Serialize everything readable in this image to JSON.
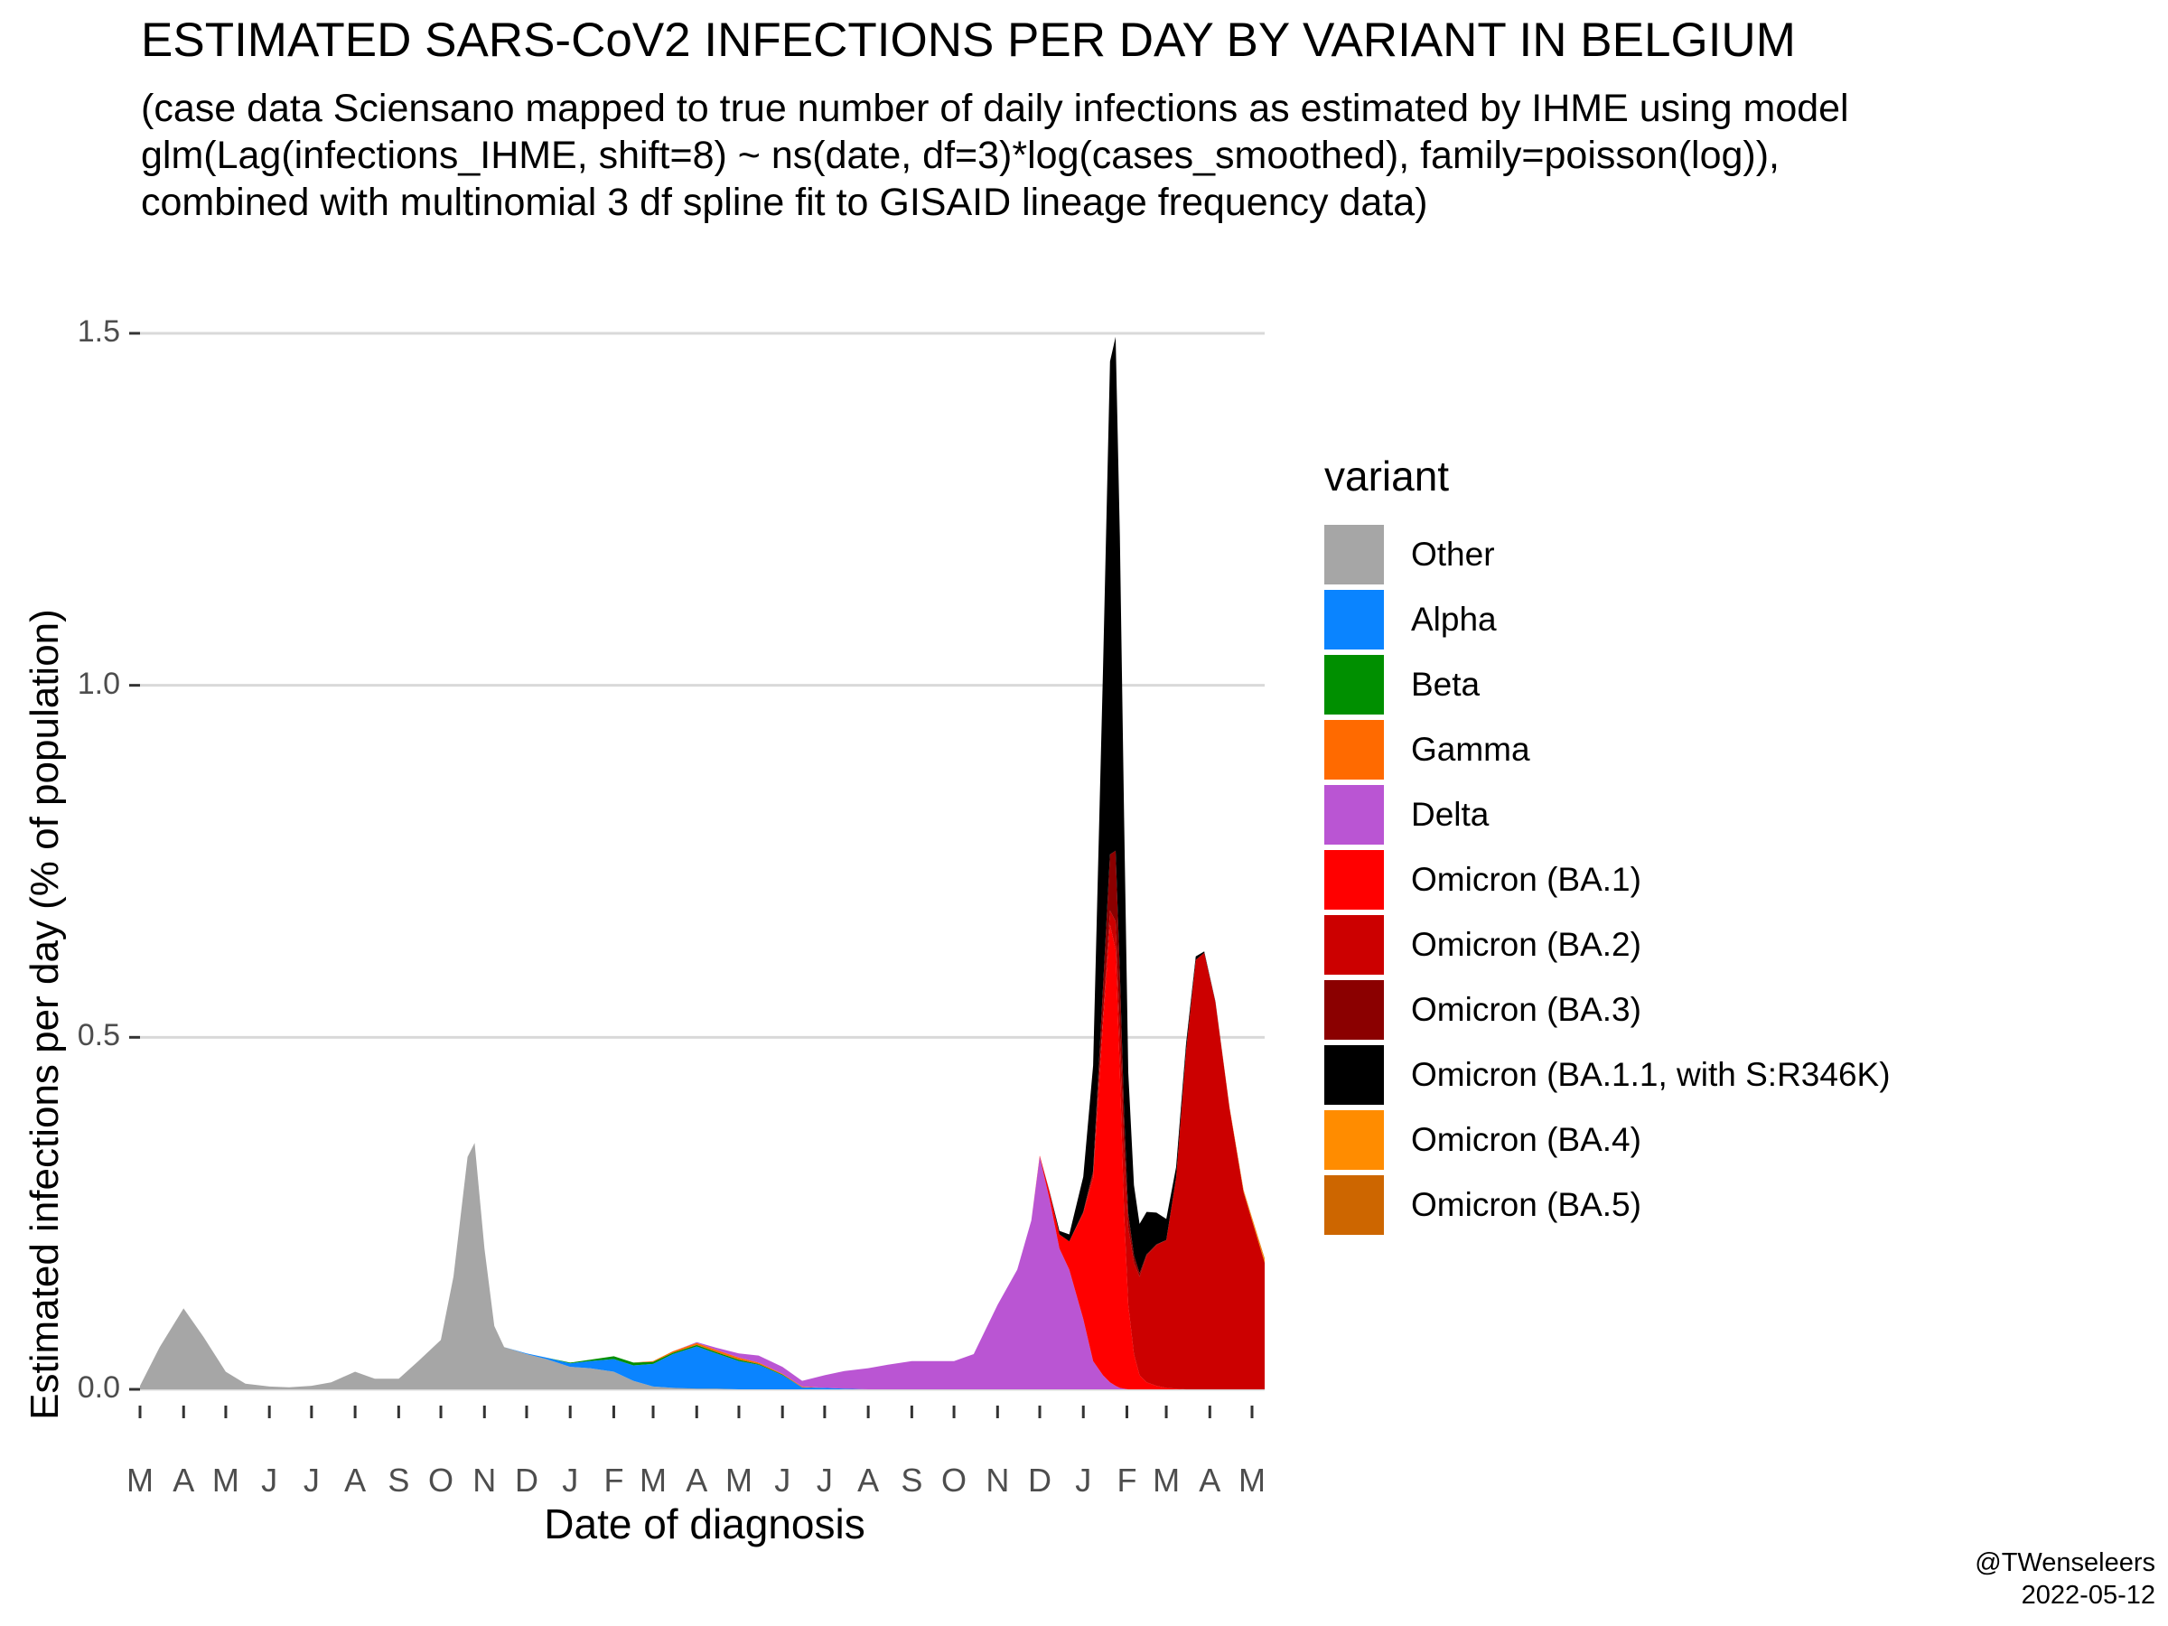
{
  "chart_data": {
    "type": "area",
    "stacked": true,
    "title": "ESTIMATED SARS-CoV2 INFECTIONS PER DAY BY VARIANT IN BELGIUM",
    "subtitle": [
      "(case data Sciensano mapped to true number of daily infections as estimated by IHME using model",
      "glm(Lag(infections_IHME, shift=8) ~ ns(date, df=3)*log(cases_smoothed), family=poisson(log)),",
      "combined with multinomial 3 df spline fit to GISAID lineage frequency data)"
    ],
    "xlabel": "Date of diagnosis",
    "ylabel": "Estimated infections per day (% of population)",
    "ylim": [
      0,
      1.55
    ],
    "xlim": [
      "2020-03-01",
      "2022-05-10"
    ],
    "y_ticks": [
      0.0,
      0.5,
      1.0,
      1.5
    ],
    "y_tick_labels": [
      "0.0",
      "0.5",
      "1.0",
      "1.5"
    ],
    "x_ticks": [
      "2020-03-01",
      "2020-04-01",
      "2020-05-01",
      "2020-06-01",
      "2020-07-01",
      "2020-08-01",
      "2020-09-01",
      "2020-10-01",
      "2020-11-01",
      "2020-12-01",
      "2021-01-01",
      "2021-02-01",
      "2021-03-01",
      "2021-04-01",
      "2021-05-01",
      "2021-06-01",
      "2021-07-01",
      "2021-08-01",
      "2021-09-01",
      "2021-10-01",
      "2021-11-01",
      "2021-12-01",
      "2022-01-01",
      "2022-02-01",
      "2022-03-01",
      "2022-04-01",
      "2022-05-01"
    ],
    "x_tick_labels": [
      "M",
      "A",
      "M",
      "J",
      "J",
      "A",
      "S",
      "O",
      "N",
      "D",
      "J",
      "F",
      "M",
      "A",
      "M",
      "J",
      "J",
      "A",
      "S",
      "O",
      "N",
      "D",
      "J",
      "F",
      "M",
      "A",
      "M"
    ],
    "grid": "horizontal major",
    "legend_title": "variant",
    "legend_position": "right",
    "x": [
      "2020-03-01",
      "2020-03-15",
      "2020-04-01",
      "2020-04-15",
      "2020-05-01",
      "2020-05-15",
      "2020-06-01",
      "2020-06-15",
      "2020-07-01",
      "2020-07-15",
      "2020-08-01",
      "2020-08-15",
      "2020-09-01",
      "2020-09-15",
      "2020-10-01",
      "2020-10-10",
      "2020-10-20",
      "2020-10-25",
      "2020-11-01",
      "2020-11-08",
      "2020-11-15",
      "2020-12-01",
      "2020-12-15",
      "2021-01-01",
      "2021-01-15",
      "2021-02-01",
      "2021-02-15",
      "2021-03-01",
      "2021-03-15",
      "2021-04-01",
      "2021-04-15",
      "2021-05-01",
      "2021-05-15",
      "2021-06-01",
      "2021-06-15",
      "2021-07-01",
      "2021-07-15",
      "2021-08-01",
      "2021-08-15",
      "2021-09-01",
      "2021-09-15",
      "2021-10-01",
      "2021-10-15",
      "2021-11-01",
      "2021-11-15",
      "2021-11-25",
      "2021-12-01",
      "2021-12-08",
      "2021-12-15",
      "2021-12-22",
      "2022-01-01",
      "2022-01-08",
      "2022-01-15",
      "2022-01-20",
      "2022-01-24",
      "2022-01-27",
      "2022-01-30",
      "2022-02-02",
      "2022-02-06",
      "2022-02-10",
      "2022-02-15",
      "2022-02-22",
      "2022-03-01",
      "2022-03-08",
      "2022-03-15",
      "2022-03-22",
      "2022-03-28",
      "2022-04-05",
      "2022-04-15",
      "2022-04-25",
      "2022-05-01",
      "2022-05-10"
    ],
    "series": [
      {
        "name": "Other",
        "color": "#A6A6A6",
        "values": [
          0.005,
          0.06,
          0.115,
          0.075,
          0.025,
          0.008,
          0.004,
          0.003,
          0.005,
          0.01,
          0.025,
          0.015,
          0.015,
          0.04,
          0.07,
          0.16,
          0.33,
          0.35,
          0.2,
          0.09,
          0.06,
          0.05,
          0.043,
          0.032,
          0.03,
          0.025,
          0.012,
          0.004,
          0.002,
          0.001,
          0.001,
          0,
          0,
          0,
          0,
          0,
          0,
          0,
          0,
          0,
          0,
          0,
          0,
          0,
          0,
          0,
          0,
          0,
          0,
          0,
          0,
          0,
          0,
          0,
          0,
          0,
          0,
          0,
          0,
          0,
          0,
          0,
          0,
          0,
          0,
          0,
          0,
          0,
          0,
          0,
          0,
          0
        ]
      },
      {
        "name": "Alpha",
        "color": "#0A84FF",
        "values": [
          0,
          0,
          0,
          0,
          0,
          0,
          0,
          0,
          0,
          0,
          0,
          0,
          0,
          0,
          0,
          0,
          0,
          0,
          0,
          0,
          0,
          0.001,
          0.002,
          0.005,
          0.01,
          0.018,
          0.022,
          0.032,
          0.048,
          0.06,
          0.05,
          0.04,
          0.035,
          0.02,
          0.003,
          0.002,
          0.001,
          0,
          0,
          0,
          0,
          0,
          0,
          0,
          0,
          0,
          0,
          0,
          0,
          0,
          0,
          0,
          0,
          0,
          0,
          0,
          0,
          0,
          0,
          0,
          0,
          0,
          0,
          0,
          0,
          0,
          0,
          0,
          0,
          0,
          0,
          0
        ]
      },
      {
        "name": "Beta",
        "color": "#008F00",
        "values": [
          0,
          0,
          0,
          0,
          0,
          0,
          0,
          0,
          0,
          0,
          0,
          0,
          0,
          0,
          0,
          0,
          0,
          0,
          0,
          0,
          0,
          0,
          0,
          0.001,
          0.002,
          0.004,
          0.004,
          0.003,
          0.002,
          0.002,
          0.002,
          0.002,
          0.001,
          0.001,
          0,
          0,
          0,
          0,
          0,
          0,
          0,
          0,
          0,
          0,
          0,
          0,
          0,
          0,
          0,
          0,
          0,
          0,
          0,
          0,
          0,
          0,
          0,
          0,
          0,
          0,
          0,
          0,
          0,
          0,
          0,
          0,
          0,
          0,
          0,
          0,
          0,
          0
        ]
      },
      {
        "name": "Gamma",
        "color": "#FF6A00",
        "values": [
          0,
          0,
          0,
          0,
          0,
          0,
          0,
          0,
          0,
          0,
          0,
          0,
          0,
          0,
          0,
          0,
          0,
          0,
          0,
          0,
          0,
          0,
          0,
          0,
          0,
          0,
          0,
          0.001,
          0.002,
          0.003,
          0.003,
          0.003,
          0.002,
          0.001,
          0.001,
          0,
          0,
          0,
          0,
          0,
          0,
          0,
          0,
          0,
          0,
          0,
          0,
          0,
          0,
          0,
          0,
          0,
          0,
          0,
          0,
          0,
          0,
          0,
          0,
          0,
          0,
          0,
          0,
          0,
          0,
          0,
          0,
          0,
          0,
          0,
          0,
          0
        ]
      },
      {
        "name": "Delta",
        "color": "#BA55D3",
        "values": [
          0,
          0,
          0,
          0,
          0,
          0,
          0,
          0,
          0,
          0,
          0,
          0,
          0,
          0,
          0,
          0,
          0,
          0,
          0,
          0,
          0,
          0,
          0,
          0,
          0,
          0,
          0,
          0,
          0,
          0.001,
          0.003,
          0.006,
          0.01,
          0.01,
          0.008,
          0.018,
          0.025,
          0.03,
          0.035,
          0.04,
          0.04,
          0.04,
          0.05,
          0.12,
          0.17,
          0.24,
          0.33,
          0.27,
          0.2,
          0.17,
          0.1,
          0.04,
          0.02,
          0.01,
          0.005,
          0.002,
          0.001,
          0,
          0,
          0,
          0,
          0,
          0,
          0,
          0,
          0,
          0,
          0,
          0,
          0,
          0,
          0
        ]
      },
      {
        "name": "Omicron (BA.1)",
        "color": "#FF0000",
        "values": [
          0,
          0,
          0,
          0,
          0,
          0,
          0,
          0,
          0,
          0,
          0,
          0,
          0,
          0,
          0,
          0,
          0,
          0,
          0,
          0,
          0,
          0,
          0,
          0,
          0,
          0,
          0,
          0,
          0,
          0,
          0,
          0,
          0,
          0,
          0,
          0,
          0,
          0,
          0,
          0,
          0,
          0,
          0,
          0,
          0,
          0,
          0.002,
          0.01,
          0.02,
          0.04,
          0.15,
          0.26,
          0.5,
          0.65,
          0.62,
          0.45,
          0.25,
          0.12,
          0.05,
          0.02,
          0.01,
          0.005,
          0.002,
          0.001,
          0,
          0,
          0,
          0,
          0,
          0,
          0,
          0
        ]
      },
      {
        "name": "Omicron (BA.2)",
        "color": "#CC0000",
        "values": [
          0,
          0,
          0,
          0,
          0,
          0,
          0,
          0,
          0,
          0,
          0,
          0,
          0,
          0,
          0,
          0,
          0,
          0,
          0,
          0,
          0,
          0,
          0,
          0,
          0,
          0,
          0,
          0,
          0,
          0,
          0,
          0,
          0,
          0,
          0,
          0,
          0,
          0,
          0,
          0,
          0,
          0,
          0,
          0,
          0,
          0,
          0,
          0,
          0,
          0,
          0.002,
          0.005,
          0.01,
          0.02,
          0.04,
          0.06,
          0.09,
          0.11,
          0.13,
          0.14,
          0.18,
          0.2,
          0.21,
          0.3,
          0.48,
          0.61,
          0.62,
          0.55,
          0.4,
          0.28,
          0.24,
          0.18
        ]
      },
      {
        "name": "Omicron (BA.3)",
        "color": "#8B0000",
        "values": [
          0,
          0,
          0,
          0,
          0,
          0,
          0,
          0,
          0,
          0,
          0,
          0,
          0,
          0,
          0,
          0,
          0,
          0,
          0,
          0,
          0,
          0,
          0,
          0,
          0,
          0,
          0,
          0,
          0,
          0,
          0,
          0,
          0,
          0,
          0,
          0,
          0,
          0,
          0,
          0,
          0,
          0,
          0,
          0,
          0,
          0,
          0,
          0,
          0,
          0,
          0,
          0.005,
          0.04,
          0.08,
          0.1,
          0.08,
          0.05,
          0.02,
          0.01,
          0.005,
          0.002,
          0.001,
          0,
          0,
          0,
          0,
          0,
          0,
          0,
          0,
          0,
          0
        ]
      },
      {
        "name": "Omicron (BA.1.1, with S:R346K)",
        "color": "#000000",
        "values": [
          0,
          0,
          0,
          0,
          0,
          0,
          0,
          0,
          0,
          0,
          0,
          0,
          0,
          0,
          0,
          0,
          0,
          0,
          0,
          0,
          0,
          0,
          0,
          0,
          0,
          0,
          0,
          0,
          0,
          0,
          0,
          0,
          0,
          0,
          0,
          0,
          0,
          0,
          0,
          0,
          0,
          0,
          0,
          0,
          0,
          0,
          0,
          0.001,
          0.005,
          0.01,
          0.05,
          0.15,
          0.45,
          0.7,
          0.73,
          0.62,
          0.42,
          0.2,
          0.1,
          0.07,
          0.06,
          0.045,
          0.03,
          0.015,
          0.01,
          0.005,
          0.002,
          0.001,
          0,
          0,
          0,
          0
        ]
      },
      {
        "name": "Omicron (BA.4)",
        "color": "#FF8C00",
        "values": [
          0,
          0,
          0,
          0,
          0,
          0,
          0,
          0,
          0,
          0,
          0,
          0,
          0,
          0,
          0,
          0,
          0,
          0,
          0,
          0,
          0,
          0,
          0,
          0,
          0,
          0,
          0,
          0,
          0,
          0,
          0,
          0,
          0,
          0,
          0,
          0,
          0,
          0,
          0,
          0,
          0,
          0,
          0,
          0,
          0,
          0,
          0,
          0,
          0,
          0,
          0,
          0,
          0,
          0,
          0,
          0,
          0,
          0,
          0,
          0,
          0,
          0,
          0,
          0,
          0,
          0,
          0,
          0,
          0.001,
          0.002,
          0.003,
          0.004
        ]
      },
      {
        "name": "Omicron (BA.5)",
        "color": "#CD6600",
        "values": [
          0,
          0,
          0,
          0,
          0,
          0,
          0,
          0,
          0,
          0,
          0,
          0,
          0,
          0,
          0,
          0,
          0,
          0,
          0,
          0,
          0,
          0,
          0,
          0,
          0,
          0,
          0,
          0,
          0,
          0,
          0,
          0,
          0,
          0,
          0,
          0,
          0,
          0,
          0,
          0,
          0,
          0,
          0,
          0,
          0,
          0,
          0,
          0,
          0,
          0,
          0,
          0,
          0,
          0,
          0,
          0,
          0,
          0,
          0,
          0,
          0,
          0,
          0,
          0,
          0,
          0,
          0,
          0,
          0,
          0.001,
          0.001,
          0.002
        ]
      }
    ]
  },
  "credit": {
    "author": "@TWenseleers",
    "date": "2022-05-12"
  }
}
